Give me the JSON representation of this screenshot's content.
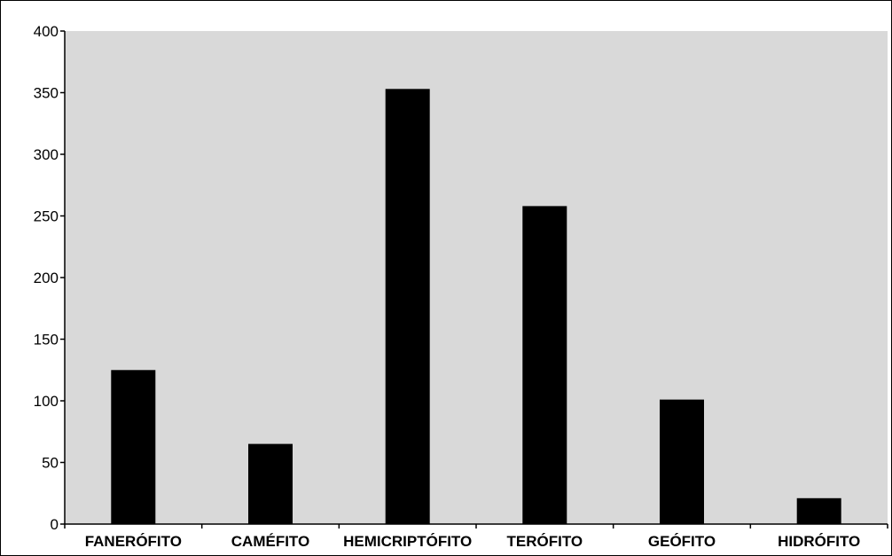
{
  "chart_data": {
    "type": "bar",
    "categories": [
      "FANERÓFITO",
      "CAMÉFITO",
      "HEMICRIPTÓFITO",
      "TERÓFITO",
      "GEÓFITO",
      "HIDRÓFITO"
    ],
    "values": [
      125,
      65,
      353,
      258,
      101,
      21
    ],
    "ylim": [
      0,
      400
    ],
    "yticks": [
      0,
      50,
      100,
      150,
      200,
      250,
      300,
      350,
      400
    ],
    "grid": false,
    "legend": "none",
    "colors": {
      "plot_background": "#d9d9d9",
      "bar": "#000000",
      "axis": "#000000"
    }
  }
}
